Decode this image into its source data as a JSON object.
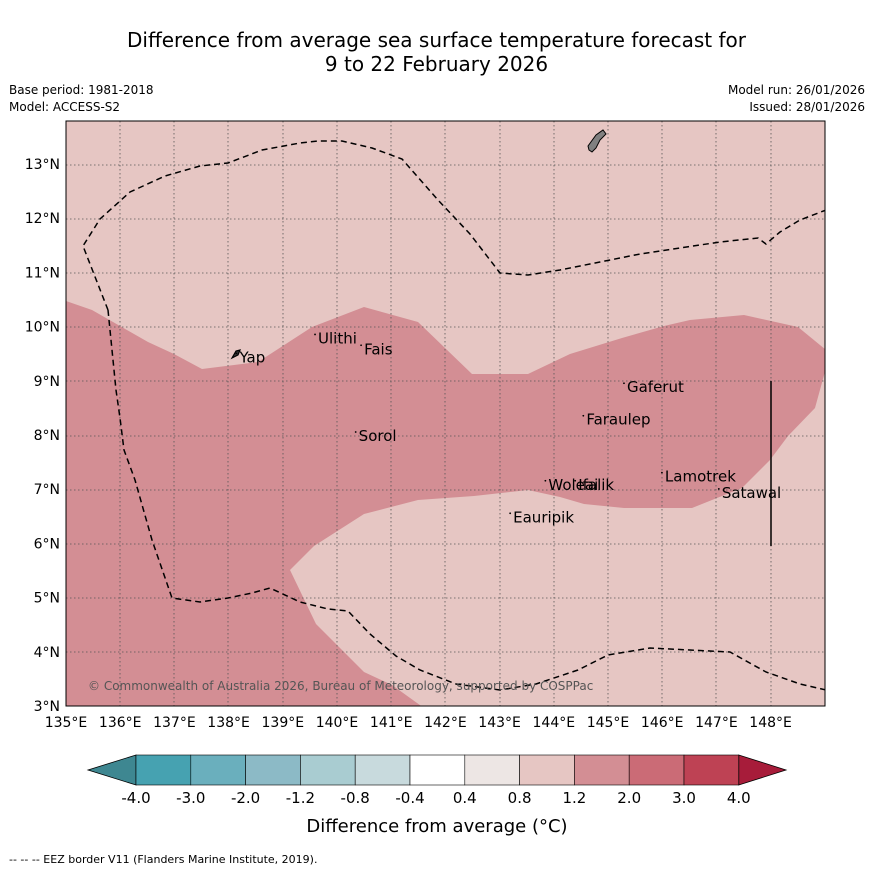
{
  "header": {
    "title_line1": "Difference from average sea surface temperature forecast for",
    "title_line2": "9 to 22 February 2026",
    "base_period": "Base period: 1981-2018",
    "model": "Model: ACCESS-S2",
    "model_run": "Model run: 26/01/2026",
    "issued": "Issued: 28/01/2026"
  },
  "map": {
    "lon_ticks": [
      "135°E",
      "136°E",
      "137°E",
      "138°E",
      "139°E",
      "140°E",
      "141°E",
      "142°E",
      "143°E",
      "144°E",
      "145°E",
      "146°E",
      "147°E",
      "148°E"
    ],
    "lat_ticks": [
      "3°N",
      "4°N",
      "5°N",
      "6°N",
      "7°N",
      "8°N",
      "9°N",
      "10°N",
      "11°N",
      "12°N",
      "13°N"
    ],
    "places": [
      {
        "name": "Yap",
        "lon": 138.2,
        "lat": 9.45
      },
      {
        "name": "Ulithi",
        "lon": 139.65,
        "lat": 9.8
      },
      {
        "name": "Fais",
        "lon": 140.5,
        "lat": 9.6
      },
      {
        "name": "Gaferut",
        "lon": 145.35,
        "lat": 8.9
      },
      {
        "name": "Faraulep",
        "lon": 144.6,
        "lat": 8.3
      },
      {
        "name": "Sorol",
        "lon": 140.4,
        "lat": 8.0
      },
      {
        "name": "Woleai",
        "lon": 143.9,
        "lat": 7.1
      },
      {
        "name": "Ifalik",
        "lon": 144.45,
        "lat": 7.1
      },
      {
        "name": "Lamotrek",
        "lon": 146.05,
        "lat": 7.25
      },
      {
        "name": "Satawal",
        "lon": 147.1,
        "lat": 6.95
      },
      {
        "name": "Eauripik",
        "lon": 143.25,
        "lat": 6.5
      }
    ],
    "copyright": "© Commonwealth of Australia 2026, Bureau of Meteorology, supported by COSPPac",
    "colors": {
      "band_0_8_to_1_2": "#e6c6c3",
      "band_1_2_to_2_0": "#d38e94",
      "land": "#808080"
    }
  },
  "colorbar": {
    "labels": [
      "-4.0",
      "-3.0",
      "-2.0",
      "-1.2",
      "-0.8",
      "-0.4",
      "0.4",
      "0.8",
      "1.2",
      "2.0",
      "3.0",
      "4.0"
    ],
    "colors": [
      "#3e8791",
      "#46a2b1",
      "#6aafbd",
      "#8cbac6",
      "#a9ccd1",
      "#c8dadd",
      "#ffffff",
      "#ede6e4",
      "#e6c6c3",
      "#d38e94",
      "#cb6b76",
      "#be4254",
      "#a71c3a"
    ],
    "label": "Difference from average (°C)"
  },
  "footnote": "--  --  -- EEZ border V11 (Flanders Marine Institute, 2019)."
}
